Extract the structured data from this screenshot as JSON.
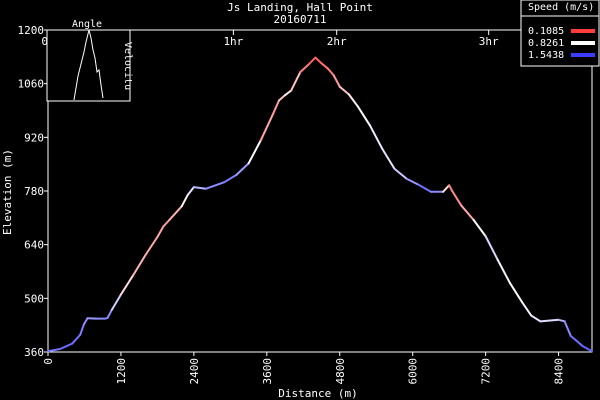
{
  "chart_data": {
    "type": "line",
    "title": "Js Landing, Hall Point",
    "subtitle": "20160711",
    "xlabel": "Distance (m)",
    "ylabel": "Elevation (m)",
    "xlim": [
      0,
      8950
    ],
    "ylim": [
      360,
      1200
    ],
    "x_ticks": [
      "0",
      "1200",
      "2400",
      "3600",
      "4800",
      "6000",
      "7200",
      "8400"
    ],
    "y_ticks": [
      "360",
      "500",
      "640",
      "780",
      "920",
      "1060",
      "1200"
    ],
    "time_ticks": [
      {
        "label": "0h",
        "x": 0
      },
      {
        "label": "1hr",
        "x": 3050
      },
      {
        "label": "2hr",
        "x": 4750
      },
      {
        "label": "3hr",
        "x": 7250
      }
    ],
    "legend": {
      "title": "Speed (m/s)",
      "placement": "top-right",
      "entries": [
        {
          "label": "0.1085",
          "color": "#ff3c3c"
        },
        {
          "label": "0.8261",
          "color": "#ffffff"
        },
        {
          "label": "1.5438",
          "color": "#3c3cff"
        }
      ]
    },
    "inset": {
      "title": "Angle",
      "right_label": "Velocitu"
    },
    "series": [
      {
        "points": [
          [
            0,
            362,
            1.3
          ],
          [
            200,
            368,
            1.35
          ],
          [
            400,
            382,
            1.4
          ],
          [
            530,
            405,
            1.3
          ],
          [
            590,
            432,
            1.3
          ],
          [
            650,
            448,
            1.2
          ],
          [
            800,
            447,
            1.2
          ],
          [
            940,
            447,
            1.3
          ],
          [
            980,
            449,
            1.3
          ],
          [
            1050,
            470,
            1.2
          ],
          [
            1200,
            510,
            0.8
          ],
          [
            1400,
            560,
            0.6
          ],
          [
            1600,
            612,
            0.5
          ],
          [
            1800,
            660,
            0.5
          ],
          [
            1900,
            688,
            0.5
          ],
          [
            2000,
            705,
            0.4
          ],
          [
            2200,
            740,
            0.7
          ],
          [
            2300,
            770,
            0.85
          ],
          [
            2400,
            790,
            1.0
          ],
          [
            2600,
            786,
            1.2
          ],
          [
            2900,
            803,
            1.3
          ],
          [
            3100,
            822,
            1.3
          ],
          [
            3300,
            852,
            1.1
          ],
          [
            3500,
            912,
            0.6
          ],
          [
            3700,
            980,
            0.4
          ],
          [
            3800,
            1016,
            0.5
          ],
          [
            3900,
            1030,
            0.7
          ],
          [
            4000,
            1042,
            0.8
          ],
          [
            4150,
            1090,
            0.4
          ],
          [
            4300,
            1112,
            0.3
          ],
          [
            4400,
            1128,
            0.2
          ],
          [
            4500,
            1113,
            0.3
          ],
          [
            4600,
            1100,
            0.3
          ],
          [
            4700,
            1082,
            0.4
          ],
          [
            4800,
            1052,
            0.5
          ],
          [
            4950,
            1032,
            0.7
          ],
          [
            5100,
            1000,
            0.8
          ],
          [
            5300,
            950,
            0.9
          ],
          [
            5500,
            890,
            0.9
          ],
          [
            5700,
            838,
            0.95
          ],
          [
            5900,
            812,
            1.1
          ],
          [
            6100,
            796,
            1.3
          ],
          [
            6300,
            778,
            1.4
          ],
          [
            6500,
            778,
            1.1
          ],
          [
            6600,
            795,
            0.3
          ],
          [
            6650,
            780,
            0.4
          ],
          [
            6800,
            742,
            0.4
          ],
          [
            7000,
            705,
            0.6
          ],
          [
            7200,
            662,
            1.0
          ],
          [
            7400,
            600,
            0.95
          ],
          [
            7600,
            540,
            0.8
          ],
          [
            7800,
            490,
            0.85
          ],
          [
            7950,
            455,
            0.9
          ],
          [
            8100,
            440,
            0.9
          ],
          [
            8400,
            444,
            1.0
          ],
          [
            8500,
            440,
            1.2
          ],
          [
            8600,
            402,
            1.3
          ],
          [
            8800,
            375,
            1.4
          ],
          [
            8950,
            362,
            1.4
          ]
        ]
      }
    ]
  }
}
